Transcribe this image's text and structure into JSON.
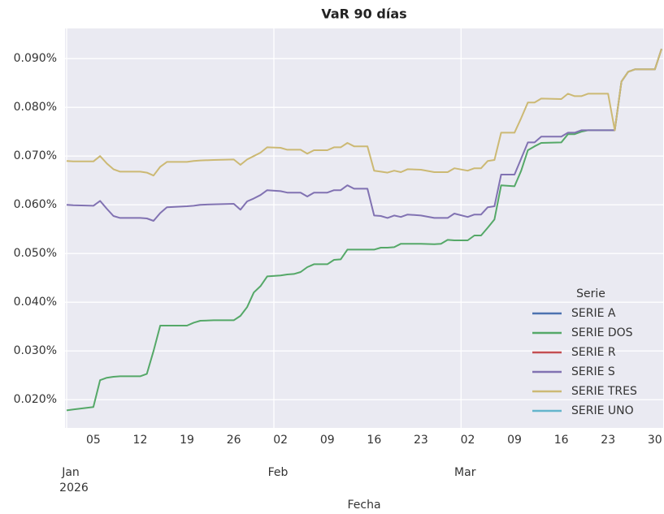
{
  "chart_data": {
    "type": "line",
    "title": "VaR 90 días",
    "x_label": "Fecha",
    "x_year_label": "2026",
    "legend_title": "Serie",
    "legend_position": "lower right",
    "grid": true,
    "ylim": [
      0.0142,
      0.0962
    ],
    "yticks": [
      {
        "value": 0.02,
        "label": "0.020%"
      },
      {
        "value": 0.03,
        "label": "0.030%"
      },
      {
        "value": 0.04,
        "label": "0.040%"
      },
      {
        "value": 0.05,
        "label": "0.050%"
      },
      {
        "value": 0.06,
        "label": "0.060%"
      },
      {
        "value": 0.07,
        "label": "0.070%"
      },
      {
        "value": 0.08,
        "label": "0.080%"
      },
      {
        "value": 0.09,
        "label": "0.090%"
      }
    ],
    "xlim": [
      "2026-01-01",
      "2026-03-31"
    ],
    "xticks_major": [
      {
        "value": "2026-01-01",
        "label": "Jan"
      },
      {
        "value": "2026-02-01",
        "label": "Feb"
      },
      {
        "value": "2026-03-01",
        "label": "Mar"
      }
    ],
    "xticks": [
      {
        "value": "2026-01-05",
        "label": "05"
      },
      {
        "value": "2026-01-12",
        "label": "12"
      },
      {
        "value": "2026-01-19",
        "label": "19"
      },
      {
        "value": "2026-01-26",
        "label": "26"
      },
      {
        "value": "2026-02-02",
        "label": "02"
      },
      {
        "value": "2026-02-09",
        "label": "09"
      },
      {
        "value": "2026-02-16",
        "label": "16"
      },
      {
        "value": "2026-02-23",
        "label": "23"
      },
      {
        "value": "2026-03-02",
        "label": "02"
      },
      {
        "value": "2026-03-09",
        "label": "09"
      },
      {
        "value": "2026-03-16",
        "label": "16"
      },
      {
        "value": "2026-03-23",
        "label": "23"
      },
      {
        "value": "2026-03-30",
        "label": "30"
      }
    ],
    "x": [
      "2026-01-01",
      "2026-01-02",
      "2026-01-05",
      "2026-01-06",
      "2026-01-07",
      "2026-01-08",
      "2026-01-09",
      "2026-01-12",
      "2026-01-13",
      "2026-01-14",
      "2026-01-15",
      "2026-01-16",
      "2026-01-19",
      "2026-01-20",
      "2026-01-21",
      "2026-01-23",
      "2026-01-26",
      "2026-01-27",
      "2026-01-28",
      "2026-01-29",
      "2026-01-30",
      "2026-01-31",
      "2026-02-02",
      "2026-02-03",
      "2026-02-04",
      "2026-02-05",
      "2026-02-06",
      "2026-02-07",
      "2026-02-09",
      "2026-02-10",
      "2026-02-11",
      "2026-02-12",
      "2026-02-13",
      "2026-02-15",
      "2026-02-16",
      "2026-02-17",
      "2026-02-18",
      "2026-02-19",
      "2026-02-20",
      "2026-02-21",
      "2026-02-23",
      "2026-02-25",
      "2026-02-26",
      "2026-02-27",
      "2026-02-28",
      "2026-03-02",
      "2026-03-03",
      "2026-03-04",
      "2026-03-05",
      "2026-03-06",
      "2026-03-07",
      "2026-03-09",
      "2026-03-10",
      "2026-03-11",
      "2026-03-12",
      "2026-03-13",
      "2026-03-16",
      "2026-03-17",
      "2026-03-18",
      "2026-03-19",
      "2026-03-20",
      "2026-03-23",
      "2026-03-24",
      "2026-03-25",
      "2026-03-26",
      "2026-03-27",
      "2026-03-30",
      "2026-03-31"
    ],
    "series": [
      {
        "name": "SERIE A",
        "color": "#4c72b0",
        "values": [
          null,
          null,
          null,
          null,
          null,
          null,
          null,
          null,
          null,
          null,
          null,
          null,
          null,
          null,
          null,
          null,
          null,
          null,
          null,
          null,
          null,
          null,
          null,
          null,
          null,
          null,
          null,
          null,
          null,
          null,
          null,
          null,
          null,
          null,
          null,
          null,
          null,
          null,
          null,
          null,
          null,
          null,
          null,
          null,
          null,
          null,
          null,
          null,
          null,
          null,
          null,
          null,
          null,
          null,
          null,
          null,
          null,
          null,
          null,
          null,
          null,
          null,
          null,
          null,
          null,
          null,
          null,
          null
        ]
      },
      {
        "name": "SERIE DOS",
        "color": "#55a868",
        "values": [
          0.0178,
          0.018,
          0.0185,
          0.024,
          0.0245,
          0.0247,
          0.0248,
          0.0248,
          0.0253,
          0.03,
          0.0352,
          0.0352,
          0.0352,
          0.0358,
          0.0362,
          0.0363,
          0.0363,
          0.0372,
          0.039,
          0.042,
          0.0433,
          0.0453,
          0.0455,
          0.0457,
          0.0458,
          0.0462,
          0.0472,
          0.0478,
          0.0478,
          0.0487,
          0.0488,
          0.0508,
          0.0508,
          0.0508,
          0.0508,
          0.0512,
          0.0512,
          0.0513,
          0.052,
          0.052,
          0.052,
          0.0519,
          0.052,
          0.0528,
          0.0527,
          0.0527,
          0.0537,
          0.0537,
          0.0553,
          0.057,
          0.064,
          0.0638,
          0.067,
          0.0712,
          0.072,
          0.0727,
          0.0728,
          0.0745,
          0.0745,
          0.075,
          0.0753,
          0.0753,
          0.0753,
          0.0853,
          0.0873,
          0.0878,
          0.0878,
          0.092
        ]
      },
      {
        "name": "SERIE R",
        "color": "#c44e52",
        "values": [
          null,
          null,
          null,
          null,
          null,
          null,
          null,
          null,
          null,
          null,
          null,
          null,
          null,
          null,
          null,
          null,
          null,
          null,
          null,
          null,
          null,
          null,
          null,
          null,
          null,
          null,
          null,
          null,
          null,
          null,
          null,
          null,
          null,
          null,
          null,
          null,
          null,
          null,
          null,
          null,
          null,
          null,
          null,
          null,
          null,
          null,
          null,
          null,
          null,
          null,
          null,
          null,
          null,
          null,
          null,
          null,
          null,
          null,
          null,
          null,
          null,
          null,
          null,
          null,
          null,
          null,
          null,
          null
        ]
      },
      {
        "name": "SERIE S",
        "color": "#8172b2",
        "values": [
          0.06,
          0.0599,
          0.0598,
          0.0608,
          0.0592,
          0.0577,
          0.0573,
          0.0573,
          0.0572,
          0.0567,
          0.0583,
          0.0595,
          0.0597,
          0.0598,
          0.06,
          0.0601,
          0.0602,
          0.059,
          0.0607,
          0.0613,
          0.062,
          0.063,
          0.0628,
          0.0625,
          0.0625,
          0.0625,
          0.0617,
          0.0625,
          0.0625,
          0.063,
          0.063,
          0.064,
          0.0633,
          0.0633,
          0.0578,
          0.0577,
          0.0573,
          0.0578,
          0.0575,
          0.058,
          0.0578,
          0.0573,
          0.0573,
          0.0573,
          0.0582,
          0.0575,
          0.058,
          0.058,
          0.0595,
          0.0597,
          0.0662,
          0.0662,
          0.0695,
          0.0728,
          0.0728,
          0.074,
          0.074,
          0.0748,
          0.0748,
          0.0753,
          0.0753,
          0.0753,
          0.0753,
          0.0853,
          0.0873,
          0.0878,
          0.0878,
          0.092
        ]
      },
      {
        "name": "SERIE TRES",
        "color": "#ccb974",
        "values": [
          0.069,
          0.0689,
          0.0689,
          0.07,
          0.0685,
          0.0673,
          0.0668,
          0.0668,
          0.0666,
          0.066,
          0.0678,
          0.0688,
          0.0688,
          0.069,
          0.0691,
          0.0692,
          0.0693,
          0.0682,
          0.0693,
          0.07,
          0.0707,
          0.0718,
          0.0717,
          0.0713,
          0.0713,
          0.0713,
          0.0705,
          0.0712,
          0.0712,
          0.0718,
          0.0718,
          0.0727,
          0.072,
          0.072,
          0.067,
          0.0668,
          0.0666,
          0.067,
          0.0667,
          0.0673,
          0.0672,
          0.0667,
          0.0667,
          0.0667,
          0.0675,
          0.067,
          0.0675,
          0.0675,
          0.069,
          0.0692,
          0.0748,
          0.0748,
          0.0778,
          0.081,
          0.081,
          0.0818,
          0.0817,
          0.0828,
          0.0823,
          0.0823,
          0.0828,
          0.0828,
          0.0753,
          0.0853,
          0.0873,
          0.0878,
          0.0878,
          0.092
        ]
      },
      {
        "name": "SERIE UNO",
        "color": "#64b5cd",
        "values": [
          null,
          null,
          null,
          null,
          null,
          null,
          null,
          null,
          null,
          null,
          null,
          null,
          null,
          null,
          null,
          null,
          null,
          null,
          null,
          null,
          null,
          null,
          null,
          null,
          null,
          null,
          null,
          null,
          null,
          null,
          null,
          null,
          null,
          null,
          null,
          null,
          null,
          null,
          null,
          null,
          null,
          null,
          null,
          null,
          null,
          null,
          null,
          null,
          null,
          null,
          null,
          null,
          null,
          null,
          null,
          null,
          null,
          null,
          null,
          null,
          null,
          null,
          null,
          null,
          null,
          null,
          null,
          null
        ]
      }
    ]
  }
}
